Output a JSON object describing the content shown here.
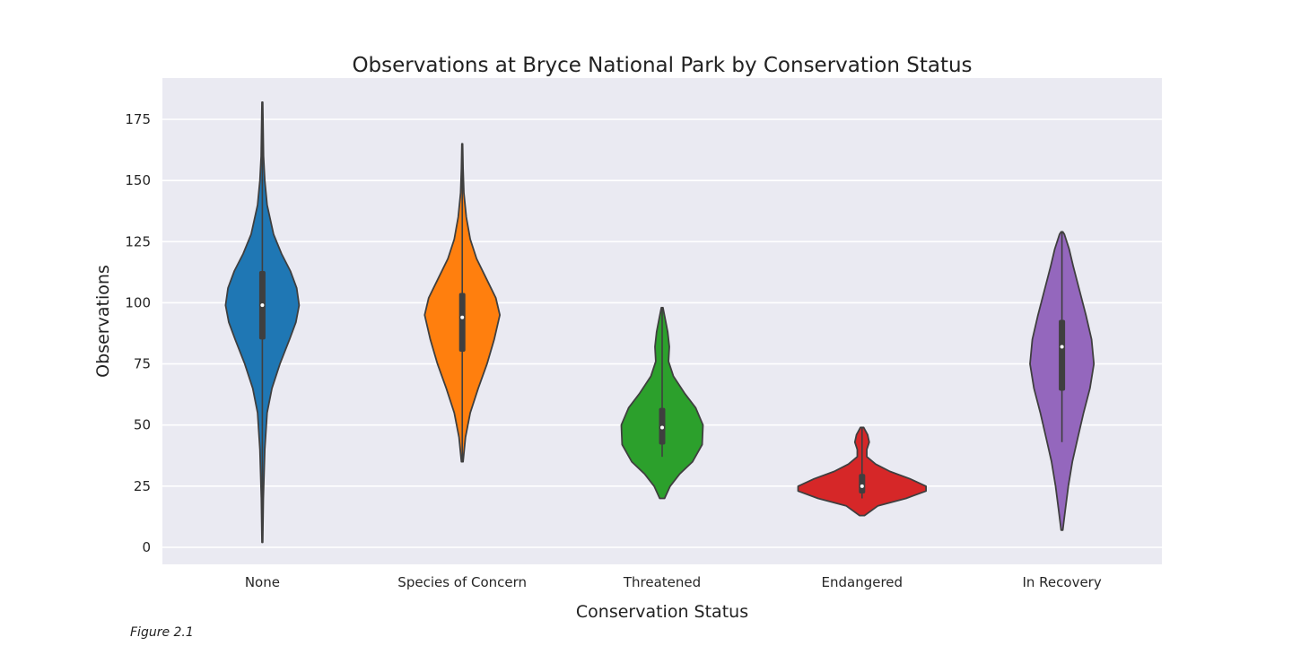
{
  "chart_data": {
    "type": "violin",
    "title": "Observations at Bryce National Park by Conservation Status",
    "xlabel": "Conservation Status",
    "ylabel": "Observations",
    "ylim": [
      -7,
      193
    ],
    "yticks": [
      0,
      25,
      50,
      75,
      100,
      125,
      150,
      175
    ],
    "grid": true,
    "background": "#EAEAF2",
    "categories": [
      "None",
      "Species of Concern",
      "Threatened",
      "Endangered",
      "In Recovery"
    ],
    "series": [
      {
        "category": "None",
        "color": "#1F77B4",
        "min": 2,
        "q1": 85,
        "median": 99,
        "q3": 113,
        "max": 182,
        "density": [
          [
            2,
            0.005
          ],
          [
            20,
            0.012
          ],
          [
            40,
            0.03
          ],
          [
            55,
            0.06
          ],
          [
            65,
            0.12
          ],
          [
            75,
            0.22
          ],
          [
            85,
            0.34
          ],
          [
            92,
            0.42
          ],
          [
            99,
            0.46
          ],
          [
            106,
            0.43
          ],
          [
            113,
            0.35
          ],
          [
            120,
            0.24
          ],
          [
            128,
            0.14
          ],
          [
            140,
            0.06
          ],
          [
            150,
            0.03
          ],
          [
            160,
            0.015
          ],
          [
            170,
            0.01
          ],
          [
            182,
            0.005
          ]
        ]
      },
      {
        "category": "Species of Concern",
        "color": "#FF7F0E",
        "min": 35,
        "q1": 80,
        "median": 94,
        "q3": 104,
        "max": 165,
        "density": [
          [
            35,
            0.01
          ],
          [
            45,
            0.04
          ],
          [
            55,
            0.1
          ],
          [
            65,
            0.2
          ],
          [
            75,
            0.31
          ],
          [
            85,
            0.4
          ],
          [
            95,
            0.47
          ],
          [
            102,
            0.42
          ],
          [
            110,
            0.3
          ],
          [
            118,
            0.18
          ],
          [
            126,
            0.1
          ],
          [
            135,
            0.05
          ],
          [
            145,
            0.02
          ],
          [
            155,
            0.01
          ],
          [
            165,
            0.005
          ]
        ]
      },
      {
        "category": "Threatened",
        "color": "#2CA02C",
        "min": 37,
        "q1": 42,
        "median": 49,
        "q3": 57,
        "max": 98,
        "density": [
          [
            20,
            0.03
          ],
          [
            25,
            0.1
          ],
          [
            30,
            0.22
          ],
          [
            35,
            0.38
          ],
          [
            42,
            0.5
          ],
          [
            50,
            0.51
          ],
          [
            57,
            0.42
          ],
          [
            63,
            0.28
          ],
          [
            70,
            0.14
          ],
          [
            76,
            0.08
          ],
          [
            82,
            0.09
          ],
          [
            88,
            0.07
          ],
          [
            93,
            0.04
          ],
          [
            98,
            0.01
          ]
        ]
      },
      {
        "category": "Endangered",
        "color": "#D62728",
        "min": 20,
        "q1": 22,
        "median": 25,
        "q3": 30,
        "max": 49,
        "density": [
          [
            13,
            0.03
          ],
          [
            17,
            0.2
          ],
          [
            20,
            0.55
          ],
          [
            23,
            0.8
          ],
          [
            25,
            0.8
          ],
          [
            28,
            0.6
          ],
          [
            31,
            0.35
          ],
          [
            34,
            0.17
          ],
          [
            37,
            0.06
          ],
          [
            40,
            0.06
          ],
          [
            43,
            0.09
          ],
          [
            46,
            0.07
          ],
          [
            49,
            0.02
          ]
        ]
      },
      {
        "category": "In Recovery",
        "color": "#9467BD",
        "min": 43,
        "q1": 64,
        "median": 82,
        "q3": 93,
        "max": 129,
        "density": [
          [
            7,
            0.01
          ],
          [
            15,
            0.04
          ],
          [
            25,
            0.08
          ],
          [
            35,
            0.13
          ],
          [
            45,
            0.2
          ],
          [
            55,
            0.27
          ],
          [
            65,
            0.35
          ],
          [
            75,
            0.4
          ],
          [
            85,
            0.37
          ],
          [
            95,
            0.3
          ],
          [
            105,
            0.22
          ],
          [
            115,
            0.14
          ],
          [
            122,
            0.09
          ],
          [
            128,
            0.03
          ],
          [
            129,
            0.01
          ]
        ]
      }
    ]
  },
  "caption": "Figure 2.1"
}
